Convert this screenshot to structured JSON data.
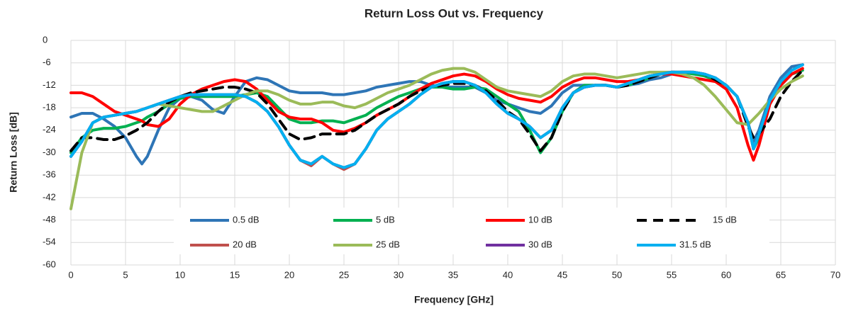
{
  "chart_data": {
    "type": "line",
    "title": "Return Loss Out vs. Frequency",
    "x_label": "Frequency [GHz]",
    "y_label": "Return Loss [dB]",
    "x": [
      0,
      1,
      2,
      3,
      4,
      5,
      6,
      6.5,
      7,
      8,
      9,
      10,
      11,
      12,
      13,
      14,
      15,
      16,
      17,
      18,
      19,
      20,
      21,
      22,
      23,
      24,
      25,
      26,
      27,
      28,
      29,
      30,
      31,
      32,
      33,
      34,
      35,
      36,
      37,
      38,
      39,
      40,
      41,
      42,
      43,
      44,
      45,
      46,
      47,
      48,
      49,
      50,
      51,
      52,
      53,
      54,
      55,
      56,
      57,
      58,
      59,
      60,
      61,
      62,
      62.5,
      63,
      64,
      65,
      66,
      67
    ],
    "series": [
      {
        "name": "0.5 dB",
        "color": "#2e75b6",
        "style": "solid",
        "values": [
          -20.5,
          -19.5,
          -19.5,
          -21,
          -23,
          -26,
          -31,
          -33,
          -31,
          -24,
          -18,
          -15.5,
          -15,
          -16,
          -18.5,
          -19.5,
          -15,
          -11,
          -10,
          -10.5,
          -12,
          -13.5,
          -14,
          -14,
          -14,
          -14.5,
          -14.5,
          -14,
          -13.5,
          -12.5,
          -12,
          -11.5,
          -11,
          -11,
          -12,
          -12.5,
          -12.5,
          -12.5,
          -12.5,
          -14,
          -16,
          -17,
          -18,
          -19,
          -19.5,
          -17.5,
          -14,
          -12,
          -12,
          -12,
          -12,
          -12.5,
          -12,
          -11.5,
          -10.5,
          -10,
          -9,
          -8.5,
          -8.5,
          -9,
          -10,
          -12,
          -15,
          -22,
          -27,
          -24,
          -15,
          -10,
          -7,
          -6.5
        ]
      },
      {
        "name": "5 dB",
        "color": "#00b050",
        "style": "solid",
        "values": [
          -30,
          -26,
          -24,
          -23.5,
          -23.5,
          -23,
          -22,
          -21.5,
          -20.5,
          -19,
          -17,
          -15.5,
          -15,
          -15,
          -15,
          -15,
          -15,
          -14.5,
          -14,
          -15,
          -18,
          -21,
          -22,
          -22,
          -21.5,
          -21.5,
          -22,
          -21,
          -20,
          -18,
          -16.5,
          -15,
          -14,
          -13,
          -12.5,
          -12.5,
          -13,
          -13,
          -12.5,
          -13,
          -15,
          -17,
          -19,
          -24,
          -30,
          -26,
          -19,
          -14,
          -12,
          -12,
          -12,
          -12.5,
          -12,
          -11,
          -10,
          -9,
          -8.5,
          -8.5,
          -9,
          -9.5,
          -10.5,
          -12,
          -15,
          -22,
          -29,
          -26,
          -17,
          -12,
          -9,
          -8
        ]
      },
      {
        "name": "10 dB",
        "color": "#ff0000",
        "style": "solid",
        "values": [
          -14,
          -14,
          -15,
          -17,
          -19,
          -20,
          -21,
          -21.5,
          -22.5,
          -23,
          -21,
          -17,
          -14.5,
          -13,
          -12,
          -11,
          -10.5,
          -11,
          -13,
          -16,
          -19,
          -20.5,
          -21,
          -21,
          -22,
          -24,
          -24.5,
          -23.5,
          -22,
          -20,
          -18.5,
          -17,
          -15,
          -13,
          -11.5,
          -10.5,
          -9.5,
          -9,
          -9.5,
          -11,
          -13,
          -14.5,
          -15.5,
          -16,
          -16.5,
          -15,
          -12.5,
          -11,
          -10,
          -10,
          -10.5,
          -11,
          -11,
          -10.5,
          -9.5,
          -9,
          -9,
          -9.5,
          -10,
          -10.5,
          -11,
          -13,
          -18,
          -28,
          -32,
          -28,
          -17,
          -12,
          -9,
          -7.5
        ]
      },
      {
        "name": "15 dB",
        "color": "#000000",
        "style": "dashed",
        "values": [
          -29.5,
          -26,
          -26,
          -26.5,
          -26.5,
          -25.5,
          -24,
          -23,
          -22,
          -19,
          -16.5,
          -15,
          -14,
          -13.5,
          -13,
          -12.5,
          -12.5,
          -13,
          -14,
          -17,
          -21,
          -25,
          -26.5,
          -26,
          -25,
          -25,
          -25,
          -24,
          -22,
          -20,
          -18.5,
          -17,
          -15,
          -13.5,
          -12.5,
          -12,
          -11.5,
          -11.5,
          -12,
          -13.5,
          -16,
          -19,
          -21,
          -25,
          -29.5,
          -26,
          -19,
          -14,
          -12.5,
          -12,
          -12,
          -12.5,
          -12,
          -11,
          -10,
          -9,
          -8.5,
          -8.5,
          -8.5,
          -9,
          -10.5,
          -12,
          -15,
          -23,
          -26,
          -25,
          -21,
          -15,
          -11,
          -8
        ]
      },
      {
        "name": "20 dB",
        "color": "#c0504d",
        "style": "solid",
        "values": [
          -31,
          -27,
          -22,
          -20.5,
          -20,
          -19.5,
          -19,
          -18.5,
          -18,
          -17,
          -16,
          -15,
          -14.5,
          -14.5,
          -14.5,
          -14.5,
          -14.5,
          -15,
          -16.5,
          -19,
          -23,
          -28,
          -32,
          -33.5,
          -31,
          -33,
          -34.5,
          -33,
          -29,
          -24,
          -21,
          -19,
          -17,
          -14.5,
          -12.5,
          -11.5,
          -11,
          -11,
          -12,
          -14,
          -17,
          -19.5,
          -21,
          -23,
          -26,
          -24,
          -18,
          -14,
          -12.5,
          -12,
          -12,
          -12.5,
          -11.5,
          -10.5,
          -9.5,
          -9,
          -8.5,
          -8.5,
          -8.5,
          -9,
          -10,
          -12,
          -15,
          -22,
          -29,
          -25,
          -16,
          -11,
          -8,
          -6.5
        ]
      },
      {
        "name": "25 dB",
        "color": "#9bbb59",
        "style": "solid",
        "values": [
          -45,
          -30,
          -22,
          -20.5,
          -20,
          -19.5,
          -19,
          -18.5,
          -18,
          -17,
          -17.5,
          -18,
          -18.5,
          -19,
          -19,
          -17.5,
          -16,
          -14.5,
          -13.5,
          -13.5,
          -14.5,
          -16,
          -17,
          -17,
          -16.5,
          -16.5,
          -17.5,
          -18,
          -17,
          -15.5,
          -14,
          -13,
          -12,
          -10.5,
          -9,
          -8,
          -7.5,
          -7.5,
          -8.5,
          -10.5,
          -12.5,
          -13.5,
          -14,
          -14.5,
          -15,
          -13.5,
          -11,
          -9.5,
          -9,
          -9,
          -9.5,
          -10,
          -9.5,
          -9,
          -8.5,
          -8.5,
          -8.5,
          -9,
          -10,
          -12,
          -15,
          -18.5,
          -22,
          -22.5,
          -21,
          -19.5,
          -16,
          -13,
          -11,
          -9.5
        ]
      },
      {
        "name": "30 dB",
        "color": "#7030a0",
        "style": "solid",
        "values": [
          -31,
          -27,
          -22,
          -20.5,
          -20,
          -19.5,
          -19,
          -18.5,
          -18,
          -17,
          -16,
          -15,
          -14.5,
          -14.5,
          -14.5,
          -14.5,
          -14.5,
          -15,
          -16.5,
          -19,
          -23,
          -28,
          -32,
          -33,
          -31,
          -33,
          -34,
          -33,
          -29,
          -24,
          -21,
          -19,
          -17,
          -14.5,
          -12.5,
          -11.5,
          -11,
          -11,
          -12,
          -14,
          -17,
          -19.5,
          -21,
          -23,
          -26,
          -24,
          -18,
          -14,
          -12.5,
          -12,
          -12,
          -12.5,
          -11.5,
          -10.5,
          -9.5,
          -9,
          -8.5,
          -8.5,
          -8.5,
          -9,
          -10,
          -12,
          -15,
          -22,
          -29,
          -25,
          -16,
          -11,
          -8,
          -6.5
        ]
      },
      {
        "name": "31.5 dB",
        "color": "#00b0f0",
        "style": "solid",
        "values": [
          -31,
          -27,
          -22,
          -20.5,
          -20,
          -19.5,
          -19,
          -18.5,
          -18,
          -17,
          -16,
          -15,
          -14.5,
          -14.5,
          -14.5,
          -14.5,
          -14.5,
          -15,
          -16.5,
          -19,
          -23,
          -28,
          -32,
          -33,
          -31,
          -33,
          -34,
          -33,
          -29,
          -24,
          -21,
          -19,
          -17,
          -14.5,
          -12.5,
          -11.5,
          -11,
          -11,
          -12,
          -14,
          -17,
          -19.5,
          -21,
          -23,
          -26,
          -24,
          -18,
          -14,
          -12.5,
          -12,
          -12,
          -12.5,
          -11.5,
          -10.5,
          -9.5,
          -9,
          -8.5,
          -8.5,
          -8.5,
          -9,
          -10,
          -12,
          -15,
          -22,
          -29,
          -25,
          -16,
          -11,
          -8,
          -6.5
        ]
      }
    ],
    "xlim": [
      0,
      70
    ],
    "xticks": [
      0,
      5,
      10,
      15,
      20,
      25,
      30,
      35,
      40,
      45,
      50,
      55,
      60,
      65,
      70
    ],
    "ylim": [
      -60,
      0
    ],
    "yticks": [
      0,
      -6,
      -12,
      -18,
      -24,
      -30,
      -36,
      -42,
      -48,
      -54,
      -60
    ],
    "grid": true,
    "legend": "bottom"
  }
}
